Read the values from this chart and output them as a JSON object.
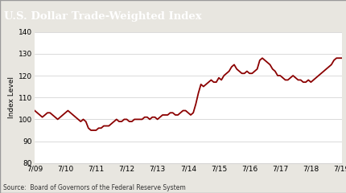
{
  "title": "U.S. Dollar Trade-Weighted Index",
  "ylabel": "Index Level",
  "source": "Source:  Board of Governors of the Federal Reserve System",
  "title_bg_color": "#4d4d4d",
  "title_text_color": "#ffffff",
  "line_color": "#8b0000",
  "outer_bg_color": "#e8e6e0",
  "plot_bg_color": "#ffffff",
  "border_color": "#aaaaaa",
  "ylim": [
    80,
    140
  ],
  "yticks": [
    80,
    90,
    100,
    110,
    120,
    130,
    140
  ],
  "xtick_labels": [
    "7/09",
    "7/10",
    "7/11",
    "7/12",
    "7/13",
    "7/14",
    "7/15",
    "7/16",
    "7/17",
    "7/18",
    "7/19"
  ],
  "x_values": [
    0,
    1,
    2,
    3,
    4,
    5,
    6,
    7,
    8,
    9,
    10,
    11,
    12,
    13,
    14,
    15,
    16,
    17,
    18,
    19,
    20,
    21,
    22,
    23,
    24,
    25,
    26,
    27,
    28,
    29,
    30,
    31,
    32,
    33,
    34,
    35,
    36,
    37,
    38,
    39,
    40,
    41,
    42,
    43,
    44,
    45,
    46,
    47,
    48,
    49,
    50,
    51,
    52,
    53,
    54,
    55,
    56,
    57,
    58,
    59,
    60,
    61,
    62,
    63,
    64,
    65,
    66,
    67,
    68,
    69,
    70,
    71,
    72,
    73,
    74,
    75,
    76,
    77,
    78,
    79,
    80,
    81,
    82,
    83,
    84,
    85,
    86,
    87,
    88,
    89,
    90,
    91,
    92,
    93,
    94,
    95,
    96,
    97,
    98,
    99,
    100,
    101,
    102,
    103,
    104,
    105,
    106,
    107,
    108,
    109,
    110,
    111,
    112,
    113,
    114,
    115,
    116,
    117,
    118,
    119,
    120
  ],
  "y_values": [
    104,
    103,
    102,
    101,
    102,
    103,
    103,
    102,
    101,
    100,
    101,
    102,
    103,
    104,
    103,
    102,
    101,
    100,
    99,
    100,
    99,
    96,
    95,
    95,
    95,
    96,
    96,
    97,
    97,
    97,
    98,
    99,
    100,
    99,
    99,
    100,
    100,
    99,
    99,
    100,
    100,
    100,
    100,
    101,
    101,
    100,
    101,
    101,
    100,
    101,
    102,
    102,
    102,
    103,
    103,
    102,
    102,
    103,
    104,
    104,
    103,
    102,
    103,
    107,
    112,
    116,
    115,
    116,
    117,
    118,
    117,
    117,
    119,
    118,
    120,
    121,
    122,
    124,
    125,
    123,
    122,
    121,
    121,
    122,
    121,
    121,
    122,
    123,
    127,
    128,
    127,
    126,
    125,
    123,
    122,
    120,
    120,
    119,
    118,
    118,
    119,
    120,
    119,
    118,
    118,
    117,
    117,
    118,
    117,
    118,
    119,
    120,
    121,
    122,
    123,
    124,
    125,
    127,
    128,
    128,
    128
  ],
  "x_tick_positions": [
    0,
    12,
    24,
    36,
    48,
    60,
    72,
    84,
    96,
    108,
    120
  ]
}
